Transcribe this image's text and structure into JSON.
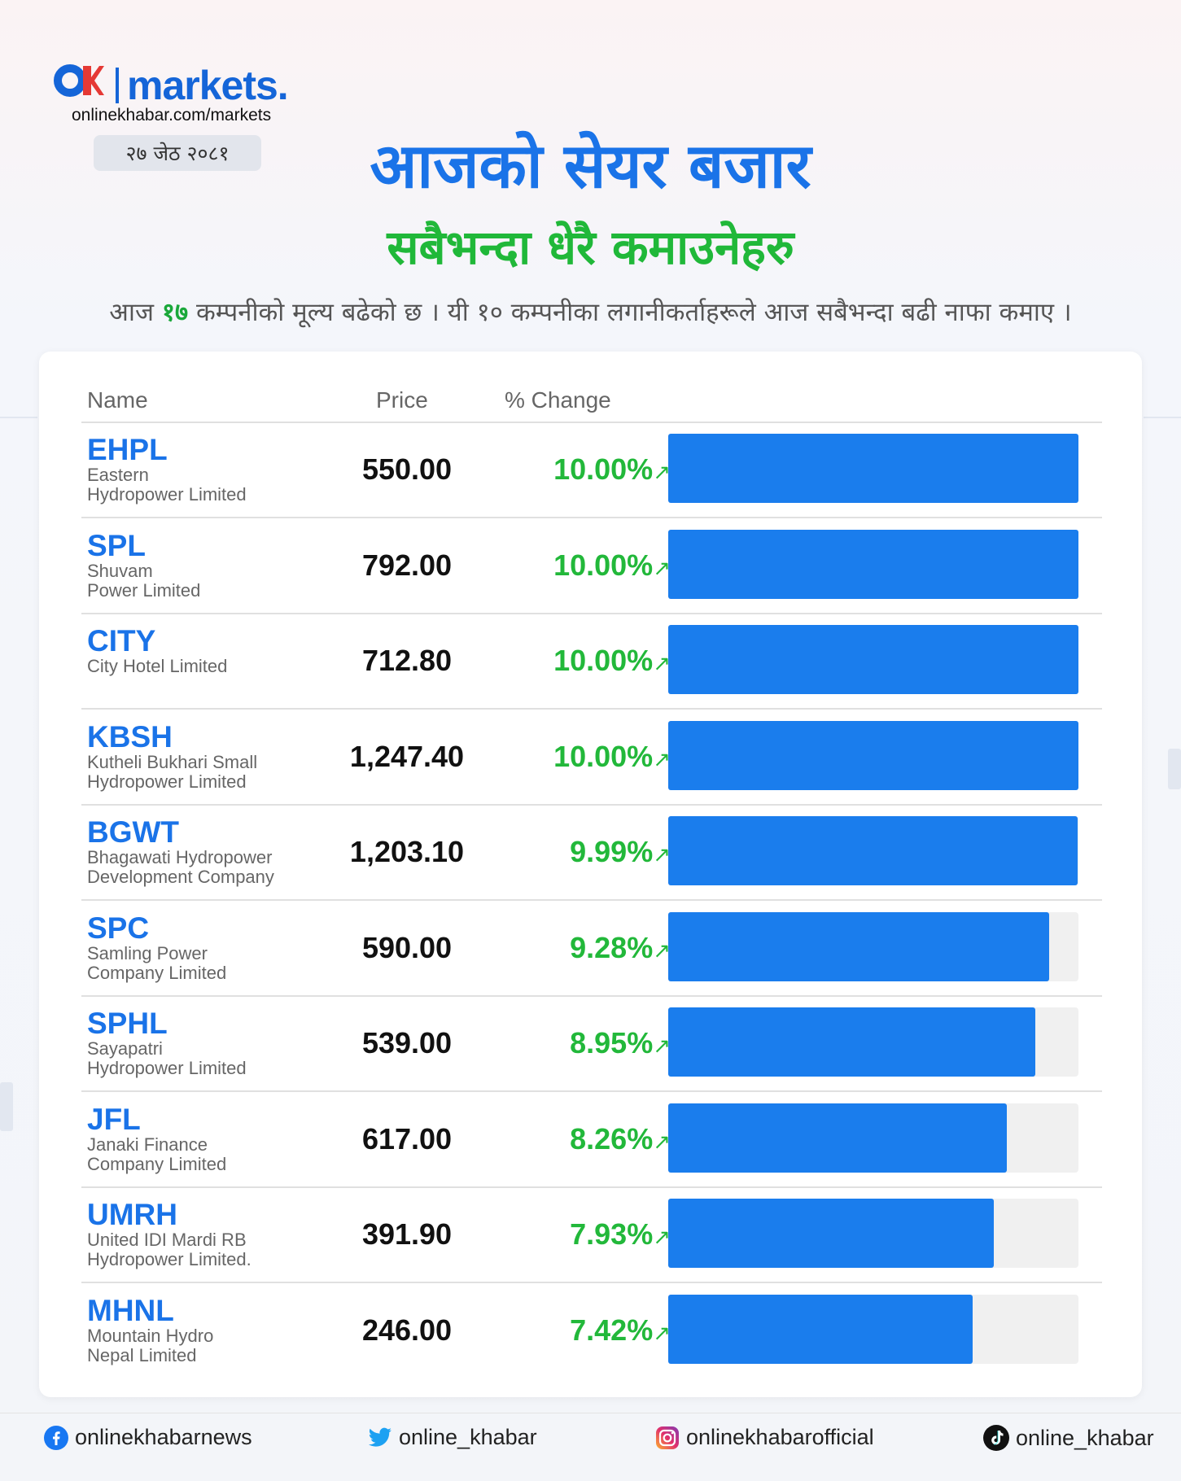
{
  "brand": {
    "ok": "OK",
    "markets": "markets.",
    "url": "onlinekhabar.com/markets",
    "date": "२७ जेठ २०८१"
  },
  "header": {
    "title": "आजको सेयर बजार",
    "subtitle": "सबैभन्दा धेरै कमाउनेहरु",
    "intro_pre": "आज ",
    "intro_count": "१७",
    "intro_post": " कम्पनीको मूल्य बढेको छ । यी १० कम्पनीका लगानीकर्ताहरूले आज सबैभन्दा बढी नाफा कमाए ।"
  },
  "table": {
    "col_name": "Name",
    "col_price": "Price",
    "col_change": "% Change"
  },
  "chart_data": {
    "type": "bar",
    "categories": [
      "EHPL",
      "SPL",
      "CITY",
      "KBSH",
      "BGWT",
      "SPC",
      "SPHL",
      "JFL",
      "UMRH",
      "MHNL"
    ],
    "names": [
      "Eastern\nHydropower Limited",
      "Shuvam\nPower Limited",
      "City Hotel Limited",
      "Kutheli Bukhari Small\nHydropower Limited",
      "Bhagawati Hydropower\nDevelopment Company",
      "Samling Power\nCompany Limited",
      "Sayapatri\nHydropower Limited",
      "Janaki Finance\nCompany Limited",
      "United IDI Mardi RB\nHydropower Limited.",
      "Mountain Hydro\nNepal Limited"
    ],
    "prices": [
      "550.00",
      "792.00",
      "712.80",
      "1,247.40",
      "1,203.10",
      "590.00",
      "539.00",
      "617.00",
      "391.90",
      "246.00"
    ],
    "change_labels": [
      "10.00%",
      "10.00%",
      "10.00%",
      "10.00%",
      "9.99%",
      "9.28%",
      "8.95%",
      "8.26%",
      "7.93%",
      "7.42%"
    ],
    "values": [
      10.0,
      10.0,
      10.0,
      10.0,
      9.99,
      9.28,
      8.95,
      8.26,
      7.93,
      7.42
    ],
    "ylim": [
      0,
      10
    ],
    "colors": {
      "bar": "#1a7ded",
      "track": "#f0f0f0",
      "symbol": "#1a73e8",
      "change": "#22b83a"
    }
  },
  "footer": {
    "facebook": "onlinekhabarnews",
    "twitter": "online_khabar",
    "instagram": "onlinekhabarofficial",
    "tiktok": "online_khabar",
    "icons": [
      "facebook-icon",
      "twitter-icon",
      "instagram-icon",
      "tiktok-icon"
    ]
  }
}
